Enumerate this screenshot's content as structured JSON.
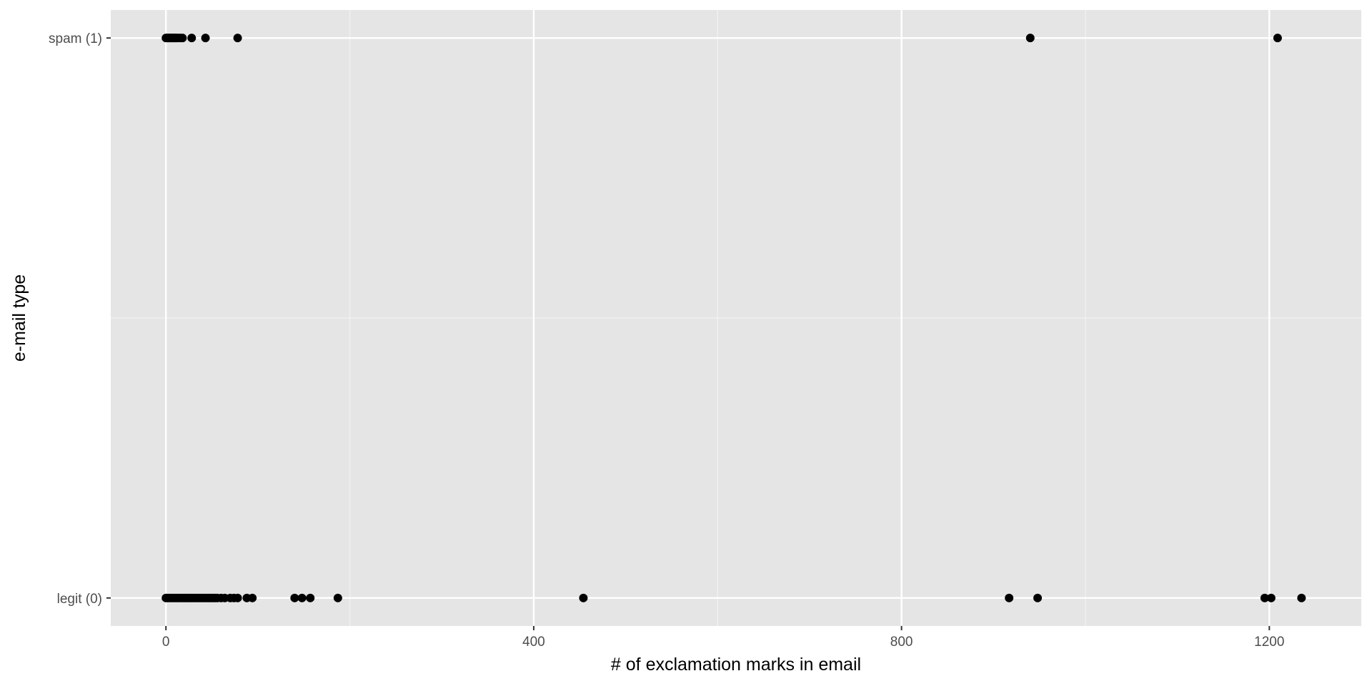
{
  "chart_data": {
    "type": "scatter",
    "title": "",
    "xlabel": "# of exclamation marks in email",
    "ylabel": "e-mail type",
    "xlim": [
      -60,
      1300
    ],
    "x_ticks": [
      0,
      400,
      800,
      1200
    ],
    "x_tick_labels": [
      "0",
      "400",
      "800",
      "1200"
    ],
    "y_categories": [
      "legit (0)",
      "spam (1)"
    ],
    "y_values": [
      0,
      1
    ],
    "ylim": [
      -0.05,
      1.05
    ],
    "grid": true,
    "legend": "none",
    "series": [
      {
        "points": [
          {
            "x": 0,
            "y": 1
          },
          {
            "x": 1,
            "y": 1
          },
          {
            "x": 2,
            "y": 1
          },
          {
            "x": 3,
            "y": 1
          },
          {
            "x": 4,
            "y": 1
          },
          {
            "x": 5,
            "y": 1
          },
          {
            "x": 6,
            "y": 1
          },
          {
            "x": 7,
            "y": 1
          },
          {
            "x": 8,
            "y": 1
          },
          {
            "x": 9,
            "y": 1
          },
          {
            "x": 10,
            "y": 1
          },
          {
            "x": 11,
            "y": 1
          },
          {
            "x": 12,
            "y": 1
          },
          {
            "x": 14,
            "y": 1
          },
          {
            "x": 16,
            "y": 1
          },
          {
            "x": 18,
            "y": 1
          },
          {
            "x": 28,
            "y": 1
          },
          {
            "x": 43,
            "y": 1
          },
          {
            "x": 78,
            "y": 1
          },
          {
            "x": 940,
            "y": 1
          },
          {
            "x": 1209,
            "y": 1
          },
          {
            "x": 0,
            "y": 0
          },
          {
            "x": 2,
            "y": 0
          },
          {
            "x": 4,
            "y": 0
          },
          {
            "x": 6,
            "y": 0
          },
          {
            "x": 8,
            "y": 0
          },
          {
            "x": 10,
            "y": 0
          },
          {
            "x": 12,
            "y": 0
          },
          {
            "x": 14,
            "y": 0
          },
          {
            "x": 16,
            "y": 0
          },
          {
            "x": 18,
            "y": 0
          },
          {
            "x": 20,
            "y": 0
          },
          {
            "x": 22,
            "y": 0
          },
          {
            "x": 24,
            "y": 0
          },
          {
            "x": 26,
            "y": 0
          },
          {
            "x": 28,
            "y": 0
          },
          {
            "x": 30,
            "y": 0
          },
          {
            "x": 32,
            "y": 0
          },
          {
            "x": 34,
            "y": 0
          },
          {
            "x": 36,
            "y": 0
          },
          {
            "x": 38,
            "y": 0
          },
          {
            "x": 40,
            "y": 0
          },
          {
            "x": 42,
            "y": 0
          },
          {
            "x": 44,
            "y": 0
          },
          {
            "x": 46,
            "y": 0
          },
          {
            "x": 48,
            "y": 0
          },
          {
            "x": 50,
            "y": 0
          },
          {
            "x": 52,
            "y": 0
          },
          {
            "x": 54,
            "y": 0
          },
          {
            "x": 56,
            "y": 0
          },
          {
            "x": 60,
            "y": 0
          },
          {
            "x": 64,
            "y": 0
          },
          {
            "x": 70,
            "y": 0
          },
          {
            "x": 74,
            "y": 0
          },
          {
            "x": 78,
            "y": 0
          },
          {
            "x": 88,
            "y": 0
          },
          {
            "x": 94,
            "y": 0
          },
          {
            "x": 140,
            "y": 0
          },
          {
            "x": 148,
            "y": 0
          },
          {
            "x": 157,
            "y": 0
          },
          {
            "x": 187,
            "y": 0
          },
          {
            "x": 454,
            "y": 0
          },
          {
            "x": 917,
            "y": 0
          },
          {
            "x": 948,
            "y": 0
          },
          {
            "x": 1195,
            "y": 0
          },
          {
            "x": 1202,
            "y": 0
          },
          {
            "x": 1235,
            "y": 0
          }
        ]
      }
    ]
  }
}
